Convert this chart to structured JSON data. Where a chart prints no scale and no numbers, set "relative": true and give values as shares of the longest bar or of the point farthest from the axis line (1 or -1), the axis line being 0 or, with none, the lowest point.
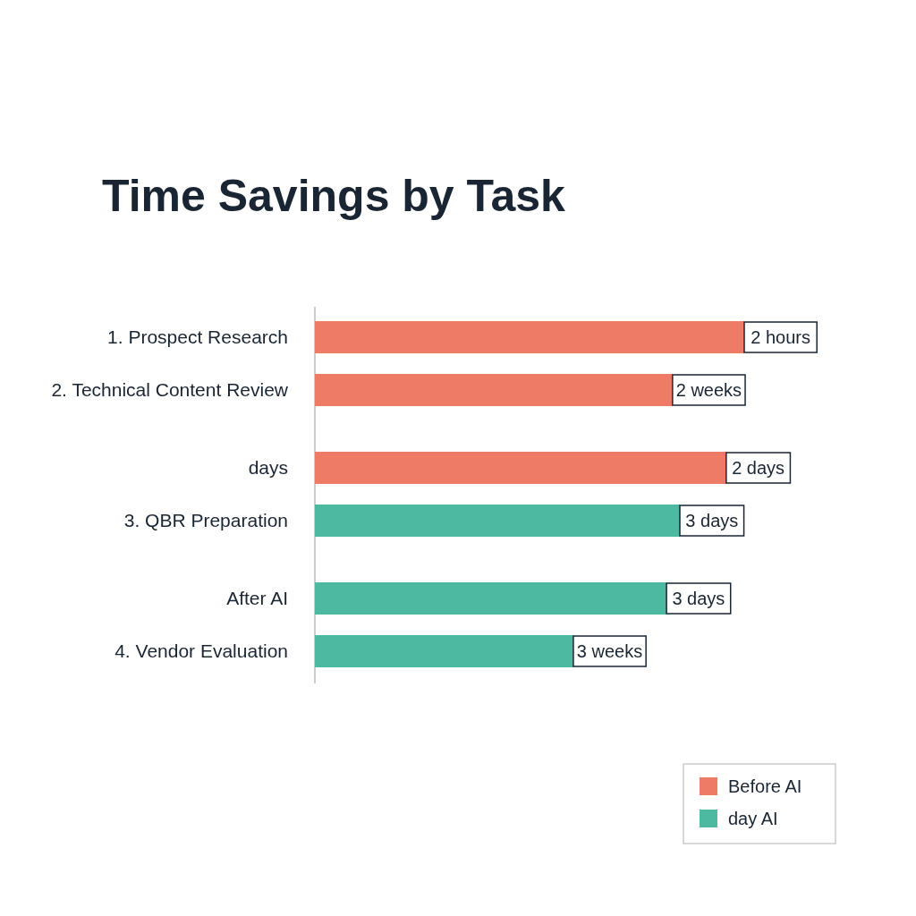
{
  "chart_data": {
    "type": "bar",
    "title": "Time Savings by Task",
    "orientation": "horizontal",
    "relative": true,
    "categories": [
      "1. Prospect Research",
      "2. Technical Content Review",
      "days",
      "3. QBR Preparation",
      "After AI",
      "4. Vendor Evaluation"
    ],
    "series": [
      {
        "name": "Before AI",
        "color": "#ee7b65",
        "values": [
          1,
          0.833,
          0.958,
          null,
          null,
          null
        ]
      },
      {
        "name": "day AI",
        "color": "#4cb9a0",
        "values": [
          null,
          null,
          null,
          0.85,
          0.819,
          0.602
        ]
      }
    ],
    "annotations": [
      {
        "text": "2 hours",
        "x": 1,
        "y": "1. Prospect Research"
      },
      {
        "text": "2 weeks",
        "x": 0.833,
        "y": "2. Technical Content Review"
      },
      {
        "text": "2 days",
        "x": 0.958,
        "y": "days"
      },
      {
        "text": "3 days",
        "x": 0.85,
        "y": "3. QBR Preparation"
      },
      {
        "text": "3 days",
        "x": 0.819,
        "y": "After AI"
      },
      {
        "text": "3 weeks",
        "x": 0.602,
        "y": "4. Vendor Evaluation"
      }
    ],
    "legend": "bottom right"
  }
}
